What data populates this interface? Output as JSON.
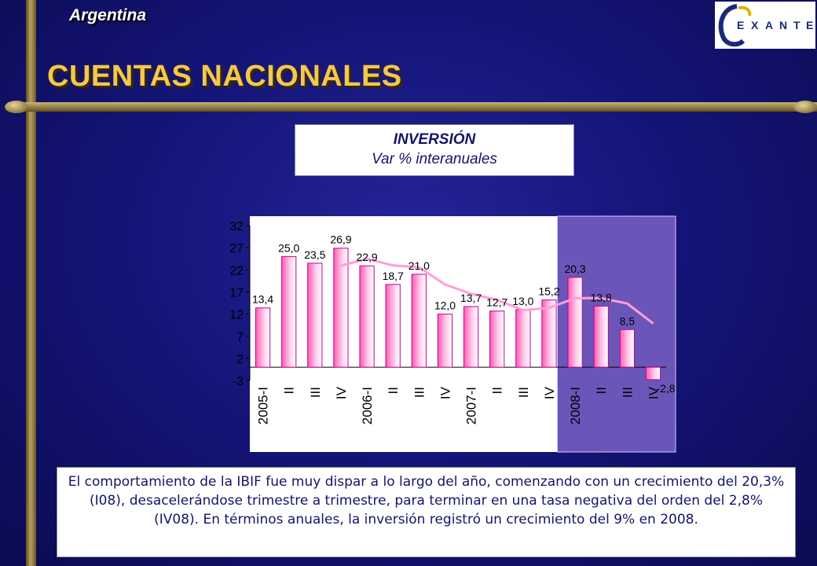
{
  "header": {
    "country": "Argentina",
    "title": "CUENTAS NACIONALES",
    "logo_text": "EXANTE"
  },
  "subtitle": {
    "line1": "INVERSIÓN",
    "line2": "Var % interanuales"
  },
  "note": "El comportamiento de la IBIF fue muy dispar a lo largo del año, comenzando con un crecimiento del 20,3% (I08), desacelerándose trimestre a trimestre, para terminar en una tasa negativa del orden del 2,8% (IV08). En términos anuales, la inversión registró un crecimiento del 9% en 2008.",
  "colors": {
    "bar_fill": "#ff5ab4",
    "trend_line": "#ff9ed8",
    "highlight": "#6a56b8"
  },
  "chart_data": {
    "type": "bar",
    "categories": [
      "2005-I",
      "II",
      "III",
      "IV",
      "2006-I",
      "II",
      "III",
      "IV",
      "2007-I",
      "II",
      "III",
      "IV",
      "2008-I",
      "II",
      "III",
      "IV"
    ],
    "values": [
      13.4,
      25.0,
      23.5,
      26.9,
      22.9,
      18.7,
      21.0,
      12.0,
      13.7,
      12.7,
      13.0,
      15.2,
      20.3,
      13.8,
      8.5,
      -2.8
    ],
    "value_labels": [
      "13,4",
      "25,0",
      "23,5",
      "26,9",
      "22,9",
      "18,7",
      "21,0",
      "12,0",
      "13,7",
      "12,7",
      "13,0",
      "15,2",
      "20,3",
      "13,8",
      "8,5",
      "-2,8"
    ],
    "trend": [
      null,
      null,
      null,
      22.9,
      24.5,
      23.0,
      22.6,
      18.7,
      16.6,
      15.2,
      12.9,
      13.4,
      15.6,
      15.6,
      14.4,
      9.9
    ],
    "y_ticks": [
      32,
      27,
      22,
      17,
      12,
      7,
      2,
      -3
    ],
    "ylim": [
      -3,
      32
    ],
    "highlight_range": [
      "2008-I",
      "IV"
    ],
    "title": "",
    "xlabel": "",
    "ylabel": ""
  }
}
